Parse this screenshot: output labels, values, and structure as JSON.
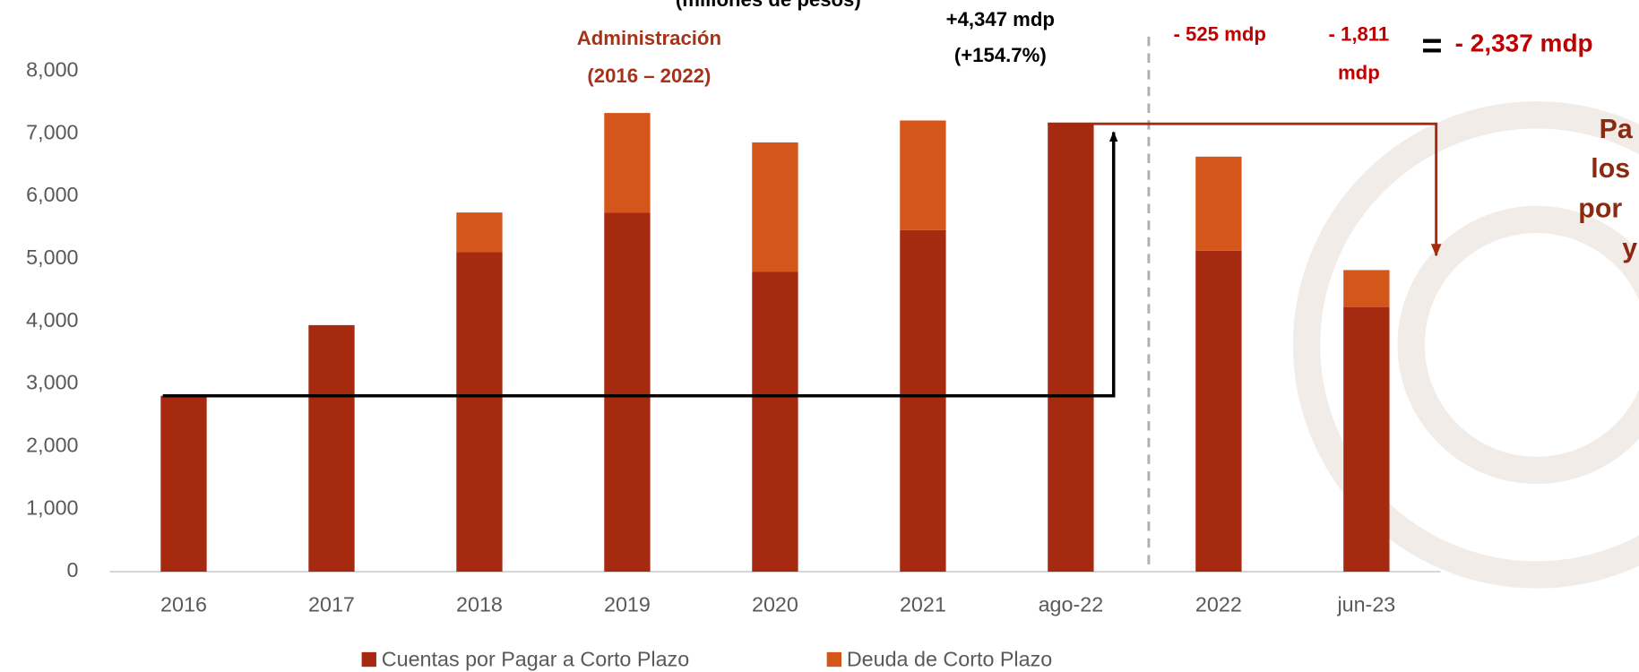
{
  "chart_data": {
    "type": "stacked-bar",
    "subtitle": "(millones de pesos)",
    "categories": [
      "2016",
      "2017",
      "2018",
      "2019",
      "2020",
      "2021",
      "ago-22",
      "2022",
      "jun-23"
    ],
    "series": [
      {
        "name": "Cuentas por Pagar a Corto Plazo",
        "color": "#a52a0f",
        "values": [
          2810,
          3940,
          5110,
          5740,
          4790,
          5460,
          7157,
          5130,
          4230
        ]
      },
      {
        "name": "Deuda de Corto Plazo",
        "color": "#d5561a",
        "values": [
          0,
          0,
          630,
          1590,
          2070,
          1750,
          0,
          1502,
          590
        ]
      }
    ],
    "ylim": [
      0,
      8000
    ],
    "yticks": [
      0,
      {
        "value": 1000,
        "label": "1,000"
      },
      {
        "value": 2000,
        "label": "2,000"
      },
      {
        "value": 3000,
        "label": "3,000"
      },
      {
        "value": 4000,
        "label": "4,000"
      },
      {
        "value": 5000,
        "label": "5,000"
      },
      {
        "value": 6000,
        "label": "6,000"
      },
      {
        "value": 7000,
        "label": "7,000"
      },
      {
        "value": 8000,
        "label": "8,000"
      }
    ],
    "annotations": {
      "admin": [
        "Administración",
        "(2016 – 2022)"
      ],
      "increase": [
        "+4,347 mdp",
        "(+154.7%)"
      ],
      "drop1": "- 525 mdp",
      "drop2": [
        "- 1,811",
        "mdp"
      ],
      "equals": "=",
      "total": "- 2,337 mdp",
      "side": [
        "Pa",
        "los",
        "por",
        "y"
      ]
    }
  }
}
